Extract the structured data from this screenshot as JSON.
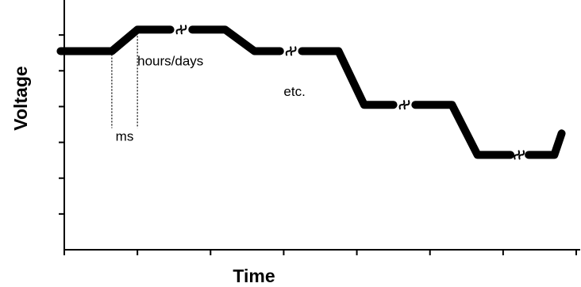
{
  "chart_data": {
    "type": "line",
    "title": "",
    "xlabel": "Time",
    "ylabel": "Voltage",
    "xlim": [
      0,
      7
    ],
    "ylim": [
      0,
      7
    ],
    "x_tick_count": 8,
    "y_tick_count": 7,
    "tick_labels_shown": false,
    "grid": false,
    "legend": "none",
    "series": [
      {
        "color": "#000000",
        "segments": [
          [
            [
              -0.05,
              5.55
            ],
            [
              0.65,
              5.55
            ],
            [
              1.0,
              6.15
            ],
            [
              1.45,
              6.15
            ]
          ],
          [
            [
              1.75,
              6.15
            ],
            [
              2.2,
              6.15
            ],
            [
              2.6,
              5.55
            ],
            [
              2.95,
              5.55
            ]
          ],
          [
            [
              3.25,
              5.55
            ],
            [
              3.75,
              5.55
            ],
            [
              4.1,
              4.05
            ],
            [
              4.5,
              4.05
            ]
          ],
          [
            [
              4.8,
              4.05
            ],
            [
              5.3,
              4.05
            ],
            [
              5.65,
              2.65
            ],
            [
              6.1,
              2.65
            ]
          ],
          [
            [
              6.35,
              2.65
            ],
            [
              6.7,
              2.65
            ],
            [
              6.8,
              3.25
            ]
          ]
        ],
        "breaks": [
          1.6,
          3.1,
          4.65,
          6.22
        ]
      }
    ],
    "annotations": [
      {
        "text": "ms",
        "x": 0.82,
        "y": 3.05
      },
      {
        "text": "hours/days",
        "x": 1.0,
        "y": 5.15
      },
      {
        "text": "etc.",
        "x": 3.0,
        "y": 4.3
      }
    ],
    "guides": [
      {
        "x": 0.65,
        "y_from": 5.55,
        "y_to": 3.4
      },
      {
        "x": 1.0,
        "y_from": 6.15,
        "y_to": 3.4
      }
    ]
  }
}
